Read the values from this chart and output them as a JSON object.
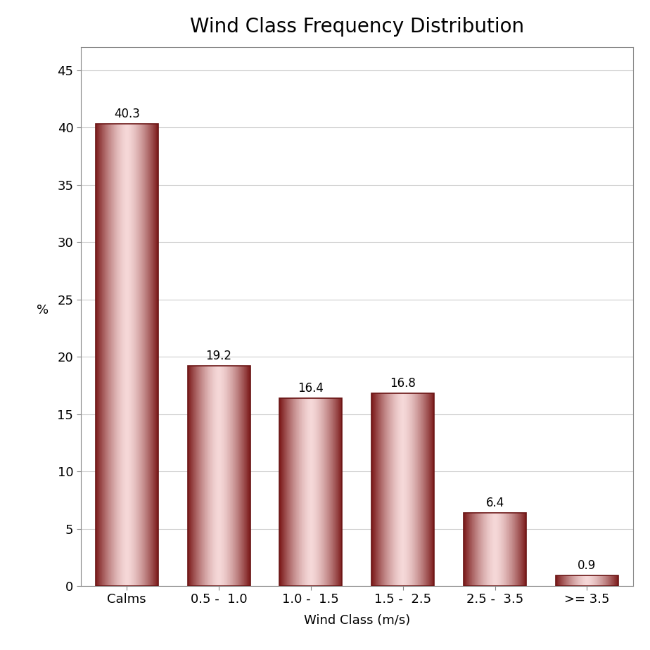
{
  "title": "Wind Class Frequency Distribution",
  "categories": [
    "Calms",
    "0.5 -  1.0",
    "1.0 -  1.5",
    "1.5 -  2.5",
    "2.5 -  3.5",
    ">= 3.5"
  ],
  "values": [
    40.3,
    19.2,
    16.4,
    16.8,
    6.4,
    0.9
  ],
  "xlabel": "Wind Class (m/s)",
  "ylabel": "%",
  "ylim": [
    0,
    47
  ],
  "yticks": [
    0,
    5,
    10,
    15,
    20,
    25,
    30,
    35,
    40,
    45
  ],
  "bar_edge_color": "#6B1515",
  "bar_dark_color": "#7A1818",
  "bar_light_color": "#F0D0D0",
  "title_fontsize": 20,
  "label_fontsize": 13,
  "tick_fontsize": 13,
  "annotation_fontsize": 12,
  "background_color": "#FFFFFF",
  "plot_bg_color": "#FFFFFF",
  "outer_bg_color": "#FFFFFF",
  "grid_color": "#CCCCCC",
  "frame_color": "#AAAAAA"
}
